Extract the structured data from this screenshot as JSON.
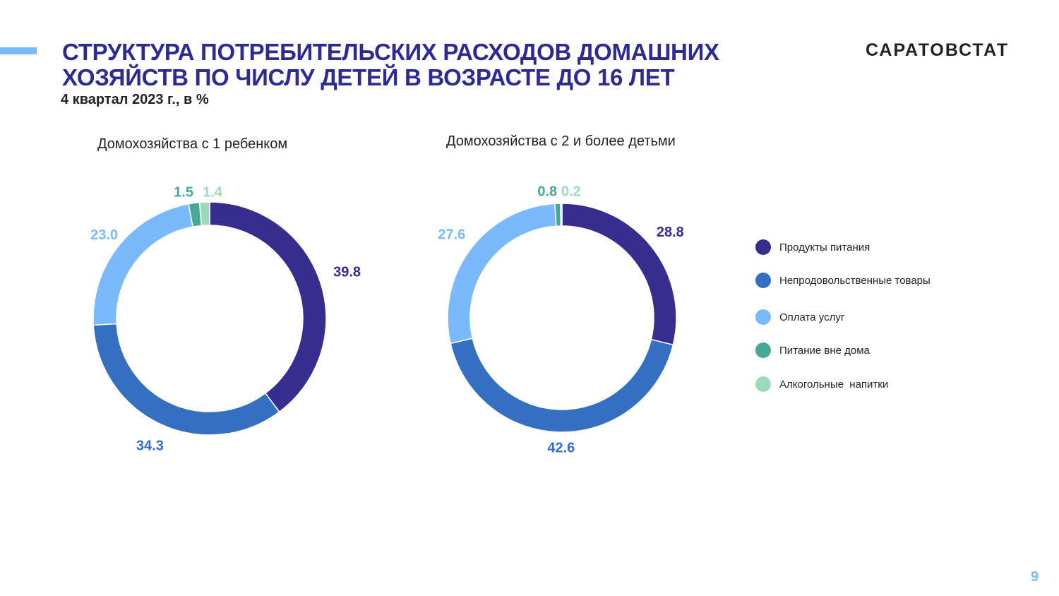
{
  "header": {
    "title_line1": "СТРУКТУРА ПОТРЕБИТЕЛЬСКИХ РАСХОДОВ ДОМАШНИХ",
    "title_line2": "ХОЗЯЙСТВ ПО ЧИСЛУ ДЕТЕЙ В ВОЗРАСТЕ ДО 16 ЛЕТ",
    "subtitle": "4 квартал 2023 г., в %",
    "brand": "САРАТОВСТАТ"
  },
  "page_number": "9",
  "colors": [
    "#372d8f",
    "#346fc2",
    "#7ab9fb",
    "#48a898",
    "#9dd9bb"
  ],
  "legend": [
    "Продукты питания",
    "Непродовольственные товары",
    "Оплата услуг",
    "Питание вне дома",
    "Алкогольные  напитки"
  ],
  "chart_data": [
    {
      "type": "pie",
      "subtype": "donut",
      "title": "Домохозяйства с 1 ребенком",
      "categories": [
        "Продукты питания",
        "Непродовольственные товары",
        "Оплата услуг",
        "Питание вне дома",
        "Алкогольные  напитки"
      ],
      "values": [
        39.8,
        34.3,
        23.0,
        1.5,
        1.4
      ],
      "labels": [
        "39.8",
        "34.3",
        "23.0",
        "1.5",
        "1.4"
      ],
      "legend_position": "right"
    },
    {
      "type": "pie",
      "subtype": "donut",
      "title": "Домохозяйства с 2 и более детьми",
      "categories": [
        "Продукты питания",
        "Непродовольственные товары",
        "Оплата услуг",
        "Питание вне дома",
        "Алкогольные  напитки"
      ],
      "values": [
        28.8,
        42.6,
        27.6,
        0.8,
        0.2
      ],
      "labels": [
        "28.8",
        "42.6",
        "27.6",
        "0.8",
        "0.2"
      ],
      "legend_position": "right"
    }
  ]
}
